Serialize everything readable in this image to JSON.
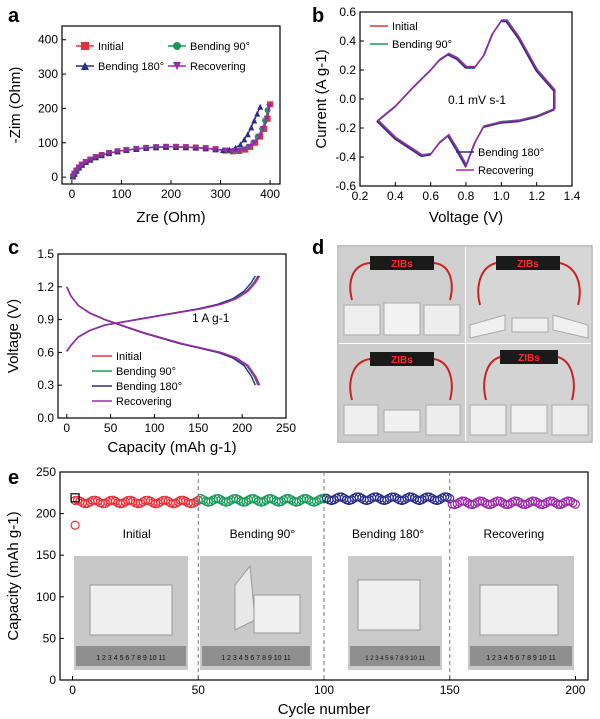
{
  "colors": {
    "red": "#e8303a",
    "green": "#1a9a5a",
    "navy": "#2b2c86",
    "purple": "#9a2aa8",
    "axis": "#000000",
    "photo_bg": "#d9d9d9",
    "lcd_text": "#ff2a2a"
  },
  "panels": {
    "a": "a",
    "b": "b",
    "c": "c",
    "d": "d",
    "e": "e"
  },
  "chart_data": [
    {
      "panel": "a",
      "type": "scatter",
      "xlabel": "Zre (Ohm)",
      "ylabel": "-Zim (Ohm)",
      "xlim": [
        -20,
        420
      ],
      "ylim": [
        -20,
        440
      ],
      "xticks": [
        0,
        100,
        200,
        300,
        400
      ],
      "yticks": [
        0,
        100,
        200,
        300,
        400
      ],
      "legend": "top",
      "series": [
        {
          "name": "Initial",
          "color": "red",
          "marker": "square",
          "x": [
            2,
            5,
            9,
            14,
            20,
            28,
            37,
            48,
            60,
            75,
            92,
            110,
            130,
            150,
            170,
            190,
            210,
            230,
            250,
            270,
            290,
            310,
            325,
            338,
            350,
            360,
            370,
            380,
            388,
            395,
            400
          ],
          "y": [
            2,
            10,
            19,
            28,
            36,
            44,
            51,
            58,
            64,
            70,
            75,
            79,
            82,
            85,
            87,
            88,
            88,
            87,
            86,
            84,
            81,
            77,
            75,
            76,
            80,
            88,
            100,
            118,
            140,
            170,
            212
          ]
        },
        {
          "name": "Bending 90°",
          "color": "green",
          "marker": "circle",
          "x": [
            2,
            5,
            9,
            14,
            20,
            28,
            37,
            48,
            60,
            75,
            92,
            110,
            130,
            150,
            170,
            190,
            210,
            230,
            250,
            270,
            290,
            308,
            322,
            335,
            346,
            356,
            366,
            375,
            384,
            390,
            395
          ],
          "y": [
            2,
            10,
            19,
            28,
            36,
            44,
            51,
            58,
            64,
            70,
            75,
            79,
            82,
            85,
            87,
            88,
            88,
            87,
            86,
            84,
            81,
            77,
            75,
            76,
            80,
            88,
            100,
            118,
            140,
            165,
            195
          ]
        },
        {
          "name": "Bending 180°",
          "color": "navy",
          "marker": "triangle-up",
          "x": [
            2,
            5,
            9,
            14,
            20,
            28,
            37,
            48,
            60,
            75,
            92,
            110,
            130,
            150,
            170,
            190,
            210,
            230,
            250,
            270,
            290,
            305,
            318,
            330,
            340,
            348,
            355,
            362,
            368,
            374,
            380
          ],
          "y": [
            2,
            10,
            19,
            28,
            36,
            44,
            51,
            58,
            64,
            70,
            75,
            79,
            82,
            85,
            87,
            88,
            88,
            87,
            86,
            84,
            81,
            79,
            80,
            85,
            95,
            110,
            125,
            145,
            165,
            185,
            205
          ]
        },
        {
          "name": "Recovering",
          "color": "purple",
          "marker": "triangle-down",
          "x": [
            2,
            5,
            9,
            14,
            20,
            28,
            37,
            48,
            60,
            75,
            92,
            110,
            130,
            150,
            170,
            190,
            210,
            230,
            250,
            270,
            290,
            310,
            324,
            336,
            348,
            358,
            368,
            378,
            386,
            393,
            398
          ],
          "y": [
            2,
            10,
            19,
            28,
            36,
            44,
            51,
            58,
            64,
            70,
            75,
            79,
            82,
            85,
            87,
            88,
            88,
            87,
            86,
            84,
            81,
            77,
            75,
            76,
            80,
            88,
            100,
            118,
            140,
            170,
            205
          ]
        }
      ]
    },
    {
      "panel": "b",
      "type": "line",
      "xlabel": "Voltage (V)",
      "ylabel": "Current (A g-1)",
      "xlim": [
        0.2,
        1.4
      ],
      "ylim": [
        -0.6,
        0.6
      ],
      "xticks": [
        0.2,
        0.4,
        0.6,
        0.8,
        1.0,
        1.2,
        1.4
      ],
      "yticks": [
        -0.6,
        -0.4,
        -0.2,
        0.0,
        0.2,
        0.4,
        0.6
      ],
      "annotation": "0.1 mV s-1",
      "series": [
        {
          "name": "Initial",
          "color": "red"
        },
        {
          "name": "Bending 90°",
          "color": "green"
        },
        {
          "name": "Bending 180°",
          "color": "navy"
        },
        {
          "name": "Recovering",
          "color": "purple"
        }
      ],
      "loop": {
        "upper_x": [
          0.3,
          0.4,
          0.5,
          0.6,
          0.65,
          0.7,
          0.75,
          0.8,
          0.85,
          0.9,
          0.95,
          1.0,
          1.03,
          1.1,
          1.2,
          1.3
        ],
        "upper_y": [
          -0.15,
          -0.05,
          0.08,
          0.2,
          0.27,
          0.31,
          0.28,
          0.22,
          0.22,
          0.3,
          0.45,
          0.54,
          0.54,
          0.42,
          0.2,
          0.06
        ],
        "lower_x": [
          1.3,
          1.2,
          1.1,
          1.0,
          0.9,
          0.85,
          0.8,
          0.75,
          0.7,
          0.65,
          0.6,
          0.55,
          0.5,
          0.4,
          0.3
        ],
        "lower_y": [
          -0.07,
          -0.12,
          -0.15,
          -0.16,
          -0.19,
          -0.3,
          -0.46,
          -0.35,
          -0.25,
          -0.3,
          -0.38,
          -0.39,
          -0.35,
          -0.27,
          -0.15
        ]
      }
    },
    {
      "panel": "c",
      "type": "line",
      "xlabel": "Capacity (mAh g-1)",
      "ylabel": "Voltage (V)",
      "xlim": [
        -10,
        250
      ],
      "ylim": [
        0.0,
        1.5
      ],
      "xticks": [
        0,
        50,
        100,
        150,
        200,
        250
      ],
      "yticks": [
        0.0,
        0.3,
        0.6,
        0.9,
        1.2,
        1.5
      ],
      "annotation": "1 A g-1",
      "series": [
        {
          "name": "Initial",
          "color": "red",
          "end": 220
        },
        {
          "name": "Bending 90°",
          "color": "green",
          "end": 218
        },
        {
          "name": "Bending 180°",
          "color": "navy",
          "end": 215
        },
        {
          "name": "Recovering",
          "color": "purple",
          "end": 219
        }
      ],
      "discharge_frac": [
        0,
        0.02,
        0.06,
        0.12,
        0.2,
        0.3,
        0.4,
        0.5,
        0.6,
        0.7,
        0.8,
        0.88,
        0.94,
        0.98,
        1.0
      ],
      "discharge_v": [
        1.2,
        1.12,
        1.03,
        0.96,
        0.9,
        0.84,
        0.78,
        0.73,
        0.68,
        0.64,
        0.6,
        0.55,
        0.48,
        0.38,
        0.3
      ],
      "charge_frac": [
        0,
        0.02,
        0.06,
        0.12,
        0.2,
        0.3,
        0.4,
        0.5,
        0.6,
        0.7,
        0.8,
        0.88,
        0.94,
        0.98,
        1.0
      ],
      "charge_v": [
        0.61,
        0.66,
        0.74,
        0.8,
        0.85,
        0.88,
        0.91,
        0.94,
        0.97,
        1.0,
        1.04,
        1.09,
        1.16,
        1.24,
        1.3
      ]
    },
    {
      "panel": "e",
      "type": "scatter",
      "xlabel": "Cycle number",
      "ylabel": "Capacity (mAh g-1)",
      "xlim": [
        -5,
        205
      ],
      "ylim": [
        0,
        250
      ],
      "xticks": [
        0,
        50,
        100,
        150,
        200
      ],
      "yticks": [
        0,
        50,
        100,
        150,
        200,
        250
      ],
      "dividers": [
        50,
        100,
        150
      ],
      "segments": [
        {
          "label": "Initial",
          "color": "red",
          "from": 1,
          "to": 50,
          "value": 214
        },
        {
          "label": "Bending 90°",
          "color": "green",
          "from": 51,
          "to": 100,
          "value": 216
        },
        {
          "label": "Bending 180°",
          "color": "navy",
          "from": 101,
          "to": 150,
          "value": 218
        },
        {
          "label": "Recovering",
          "color": "purple",
          "from": 151,
          "to": 200,
          "value": 213
        }
      ],
      "first_point": {
        "x": 1,
        "y": 186
      },
      "first_square": {
        "x": 1,
        "y": 219
      }
    }
  ],
  "photo_d": {
    "lcd_label": "ZIBs"
  },
  "ruler_numbers": "1 2 3 4 5 6 7 8 9 10 11"
}
